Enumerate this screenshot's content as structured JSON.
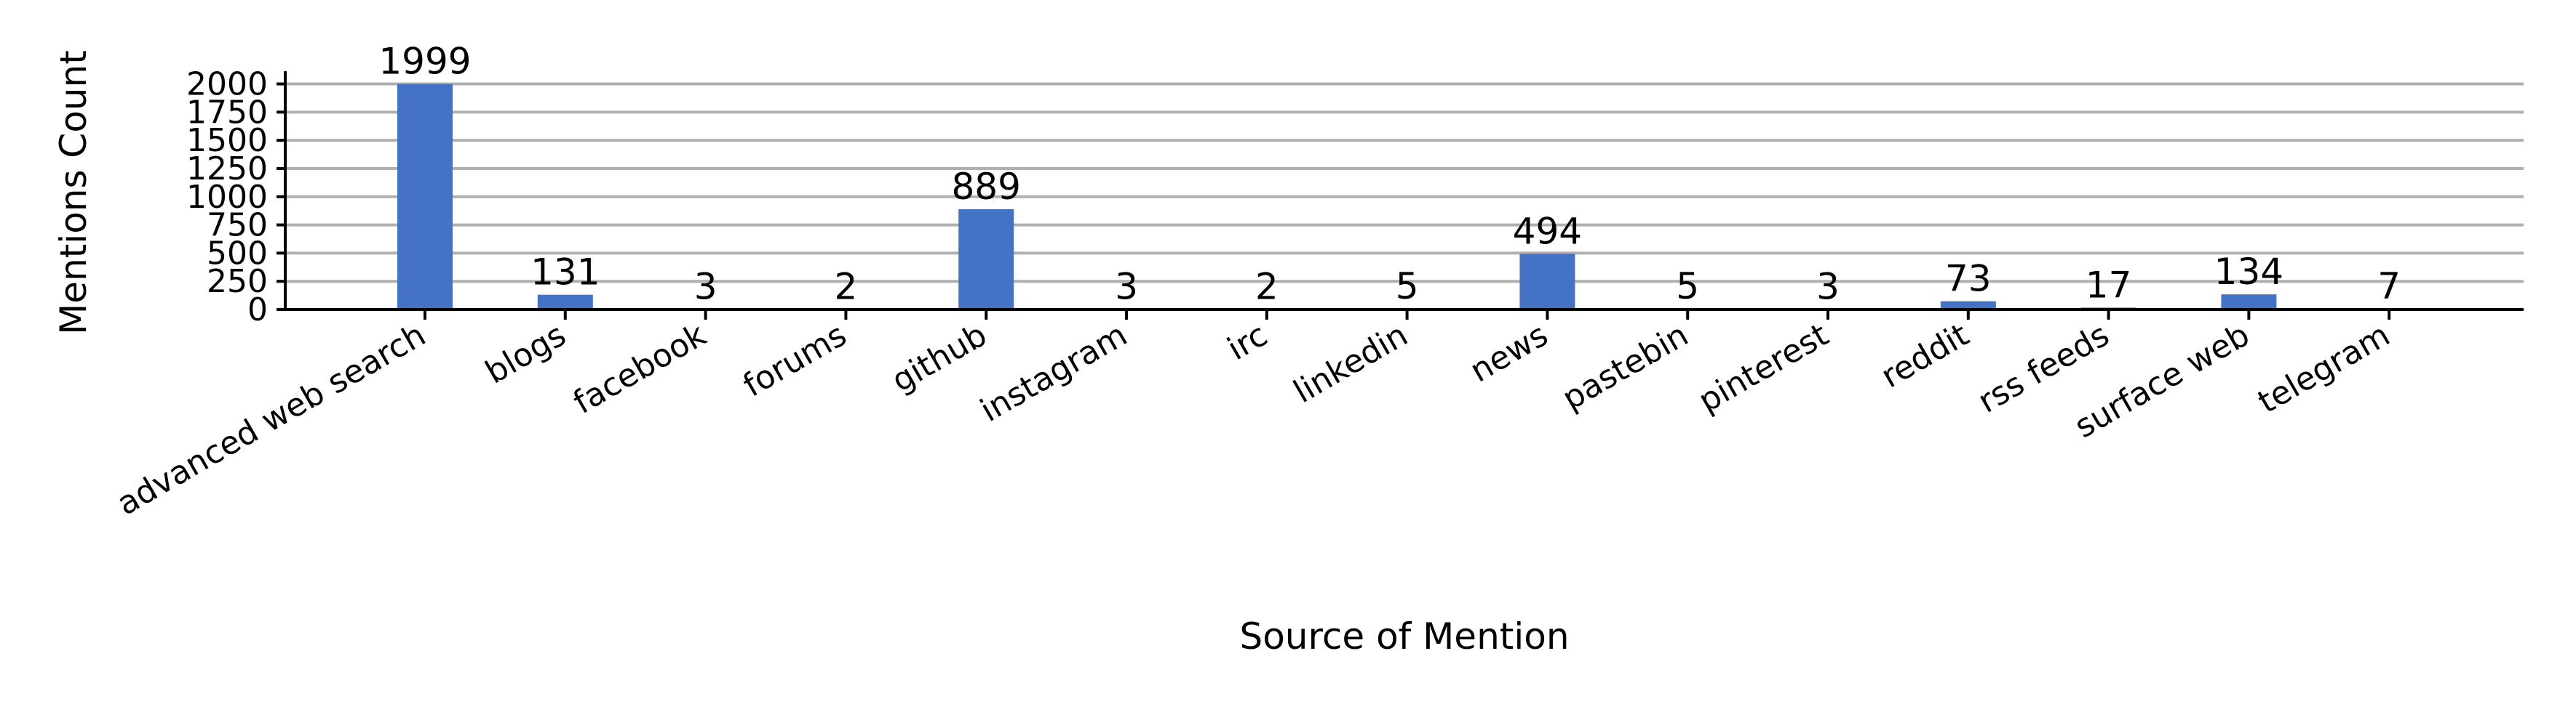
{
  "chart_data": {
    "type": "bar",
    "categories": [
      "advanced web search",
      "blogs",
      "facebook",
      "forums",
      "github",
      "instagram",
      "irc",
      "linkedin",
      "news",
      "pastebin",
      "pinterest",
      "reddit",
      "rss feeds",
      "surface web",
      "telegram"
    ],
    "values": [
      1999,
      131,
      3,
      2,
      889,
      3,
      2,
      5,
      494,
      5,
      3,
      73,
      17,
      134,
      7
    ],
    "data_labels": [
      "1999",
      "131",
      "3",
      "2",
      "889",
      "3",
      "2",
      "5",
      "494",
      "5",
      "3",
      "73",
      "17",
      "134",
      "7"
    ],
    "title": "",
    "xlabel": "Source of Mention",
    "ylabel": "Mentions Count",
    "ylim": [
      0,
      2100
    ],
    "yticks": [
      0,
      250,
      500,
      750,
      1000,
      1250,
      1500,
      1750,
      2000
    ],
    "ytick_labels": [
      "0",
      "250",
      "500",
      "750",
      "1000",
      "1250",
      "1500",
      "1750",
      "2000"
    ],
    "grid": "horizontal",
    "legend": "none",
    "colors": {
      "bar": "#4472c4",
      "grid": "#b0b0b0",
      "axis": "#000000"
    }
  }
}
